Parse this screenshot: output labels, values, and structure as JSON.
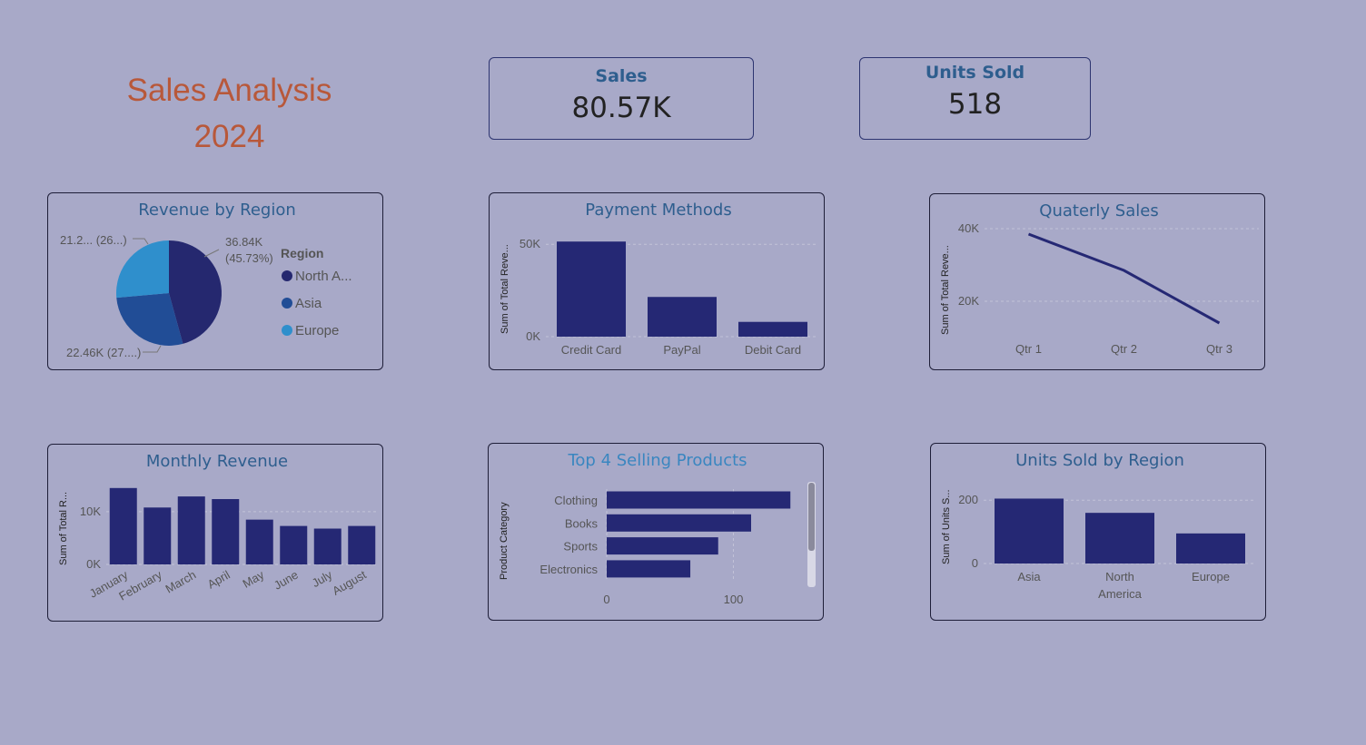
{
  "page": {
    "title_line1": "Sales Analysis",
    "title_line2": "2024"
  },
  "kpis": [
    {
      "label": "Sales",
      "value": "80.57K"
    },
    {
      "label": "Units Sold",
      "value": "518"
    }
  ],
  "colors": {
    "bar": "#252874",
    "pie": [
      "#25286f",
      "#214d96",
      "#2f8fcc"
    ],
    "title": "#b8583a"
  },
  "chart_data": [
    {
      "id": "revenue-by-region",
      "type": "pie",
      "title": "Revenue by Region",
      "legend_title": "Region",
      "legend_position": "right",
      "slices": [
        {
          "name": "North A...",
          "value": 36.84,
          "label": "36.84K",
          "pct_label": "(45.73%)"
        },
        {
          "name": "Asia",
          "value": 22.46,
          "label": "22.46K (27....)"
        },
        {
          "name": "Europe",
          "value": 21.27,
          "label": "21.2... (26...)"
        }
      ]
    },
    {
      "id": "payment-methods",
      "type": "bar",
      "title": "Payment Methods",
      "ylabel": "Sum of Total Reve...",
      "yticks": [
        "0K",
        "50K"
      ],
      "ylim": [
        0,
        57000
      ],
      "ytick_values": [
        0,
        50000
      ],
      "categories": [
        "Credit Card",
        "PayPal",
        "Debit Card"
      ],
      "values": [
        51500,
        21500,
        8000
      ]
    },
    {
      "id": "quarterly-sales",
      "type": "line",
      "title": "Quaterly Sales",
      "ylabel": "Sum of Total Reve...",
      "yticks": [
        "20K",
        "40K"
      ],
      "ylim": [
        10000,
        42000
      ],
      "ytick_values": [
        20000,
        40000
      ],
      "categories": [
        "Qtr 1",
        "Qtr 2",
        "Qtr 3"
      ],
      "values": [
        38500,
        28500,
        14000
      ]
    },
    {
      "id": "monthly-revenue",
      "type": "bar",
      "title": "Monthly Revenue",
      "ylabel": "Sum of Total R...",
      "yticks": [
        "0K",
        "10K"
      ],
      "ylim": [
        0,
        15500
      ],
      "ytick_values": [
        0,
        10000
      ],
      "categories": [
        "January",
        "February",
        "March",
        "April",
        "May",
        "June",
        "July",
        "August"
      ],
      "values": [
        14500,
        10800,
        12900,
        12400,
        8500,
        7300,
        6800,
        7300
      ]
    },
    {
      "id": "top-4-selling-products",
      "type": "bar",
      "orientation": "horizontal",
      "title": "Top 4 Selling Products",
      "ylabel": "Product Category",
      "xticks": [
        "0",
        "100"
      ],
      "xtick_values": [
        0,
        100
      ],
      "xlim": [
        0,
        152
      ],
      "categories": [
        "Clothing",
        "Books",
        "Sports",
        "Electronics"
      ],
      "values": [
        145,
        114,
        88,
        66
      ]
    },
    {
      "id": "units-sold-by-region",
      "type": "bar",
      "title": "Units Sold by Region",
      "ylabel": "Sum of Units S...",
      "yticks": [
        "0",
        "200"
      ],
      "ylim": [
        0,
        235
      ],
      "ytick_values": [
        0,
        200
      ],
      "categories": [
        "Asia",
        "North America",
        "Europe"
      ],
      "values": [
        205,
        160,
        95
      ]
    }
  ]
}
